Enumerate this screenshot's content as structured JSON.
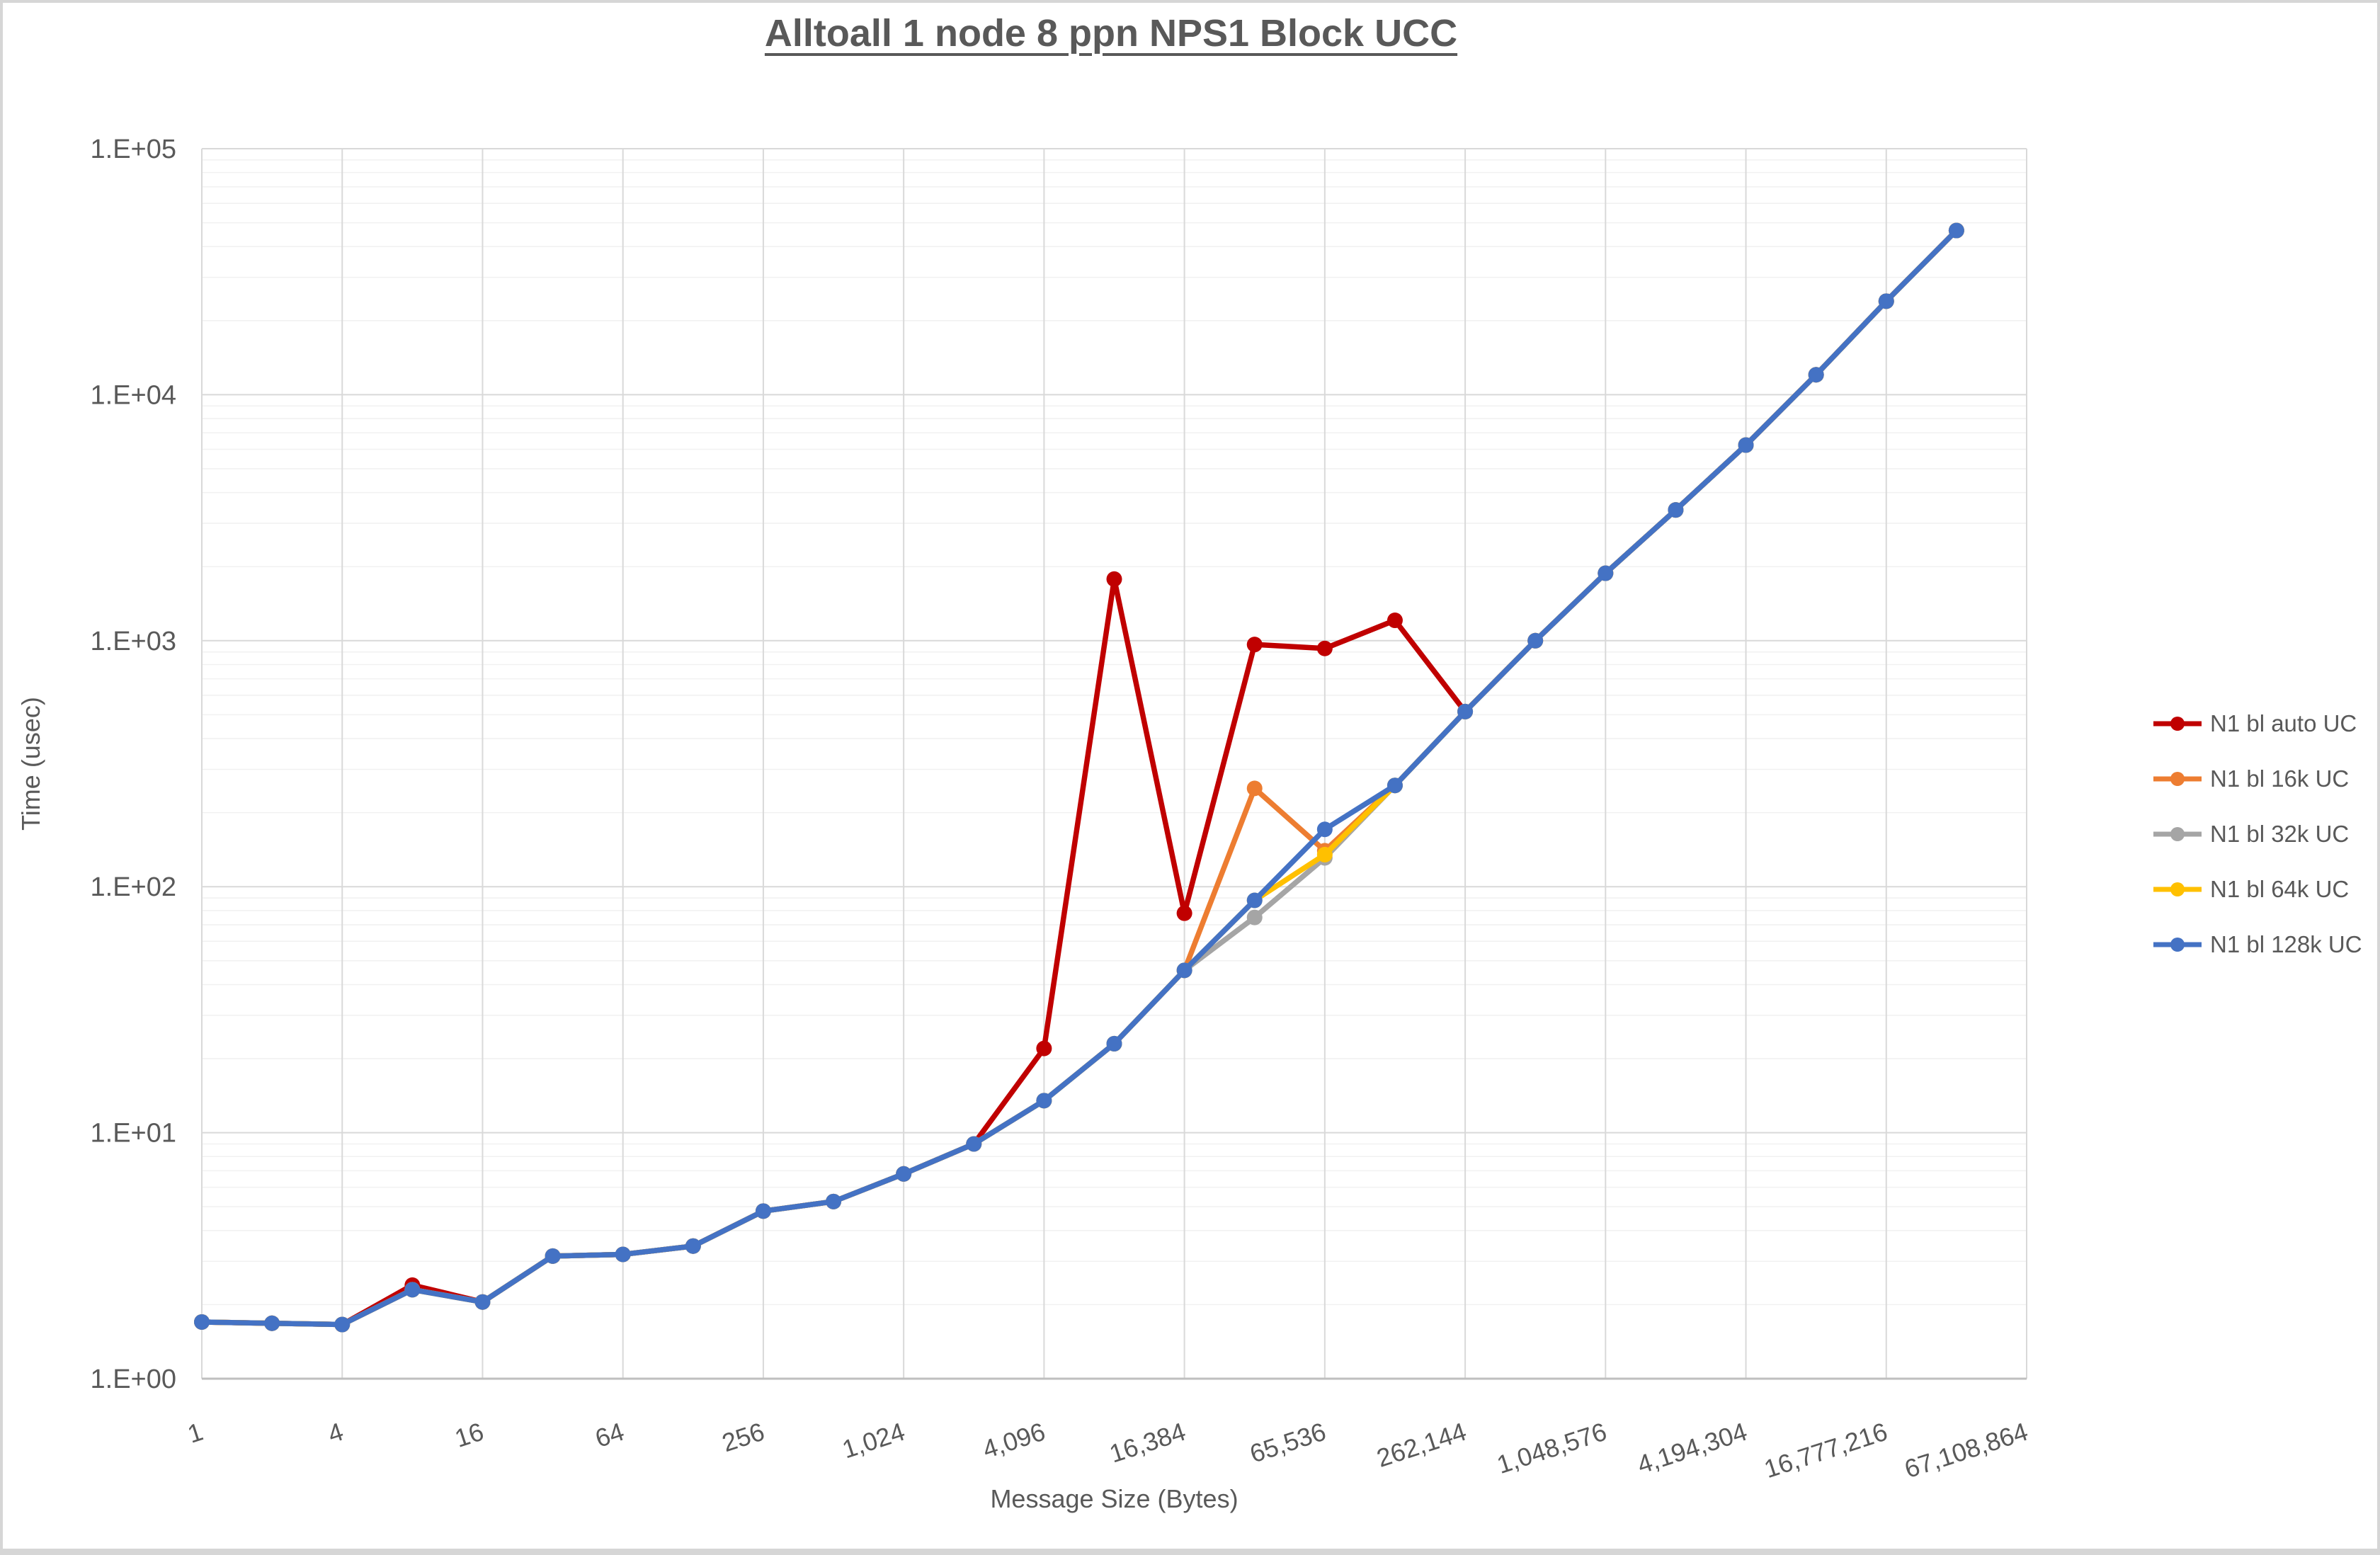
{
  "chart_data": {
    "type": "line",
    "title": "Alltoall 1 node 8 ppn NPS1 Block UCC",
    "xlabel": "Message Size (Bytes)",
    "ylabel": "Time (usec)",
    "x_scale": "log2",
    "y_scale": "log10",
    "xlim": [
      1,
      67108864
    ],
    "ylim": [
      1,
      100000
    ],
    "grid": true,
    "legend_position": "right",
    "y_tick_labels": [
      "1.E+00",
      "1.E+01",
      "1.E+02",
      "1.E+03",
      "1.E+04",
      "1.E+05"
    ],
    "x_tick_values": [
      1,
      4,
      16,
      64,
      256,
      1024,
      4096,
      16384,
      65536,
      262144,
      1048576,
      4194304,
      16777216,
      67108864
    ],
    "x_tick_labels": [
      "1",
      "4",
      "16",
      "64",
      "256",
      "1,024",
      "4,096",
      "16,384",
      "65,536",
      "262,144",
      "1,048,576",
      "4,194,304",
      "16,777,216",
      "67,108,864"
    ],
    "x": [
      1,
      2,
      4,
      8,
      16,
      32,
      64,
      128,
      256,
      512,
      1024,
      2048,
      4096,
      8192,
      16384,
      32768,
      65536,
      131072,
      262144,
      524288,
      1048576,
      2097152,
      4194304,
      8388608,
      16777216,
      33554432
    ],
    "series": [
      {
        "name": "N1 bl auto UC",
        "color": "#C00000",
        "values": [
          1.7,
          1.68,
          1.66,
          2.4,
          2.05,
          3.15,
          3.2,
          3.46,
          4.8,
          5.25,
          6.8,
          9.0,
          22,
          1780,
          78,
          965,
          930,
          1210,
          515,
          1000,
          1880,
          3400,
          6240,
          12050,
          24000,
          46500
        ]
      },
      {
        "name": "N1 bl 16k UC",
        "color": "#ED7D31",
        "values": [
          1.7,
          1.68,
          1.66,
          2.3,
          2.05,
          3.15,
          3.2,
          3.46,
          4.8,
          5.25,
          6.8,
          9.0,
          13.5,
          23,
          45.7,
          251,
          140,
          258,
          515,
          1000,
          1880,
          3400,
          6240,
          12050,
          24000,
          46500
        ]
      },
      {
        "name": "N1 bl 32k UC",
        "color": "#A5A5A5",
        "values": [
          1.7,
          1.68,
          1.66,
          2.3,
          2.05,
          3.15,
          3.2,
          3.46,
          4.8,
          5.25,
          6.8,
          9.0,
          13.5,
          23,
          45.7,
          75,
          131,
          258,
          515,
          1000,
          1880,
          3400,
          6240,
          12050,
          24000,
          46500
        ]
      },
      {
        "name": "N1 bl 64k UC",
        "color": "#FFC000",
        "values": [
          1.7,
          1.68,
          1.66,
          2.3,
          2.05,
          3.15,
          3.2,
          3.46,
          4.8,
          5.25,
          6.8,
          9.0,
          13.5,
          23,
          45.7,
          88,
          135,
          258,
          515,
          1000,
          1880,
          3400,
          6240,
          12050,
          24000,
          46500
        ]
      },
      {
        "name": "N1 bl 128k UC",
        "color": "#4472C4",
        "values": [
          1.7,
          1.68,
          1.66,
          2.3,
          2.05,
          3.15,
          3.2,
          3.46,
          4.8,
          5.25,
          6.8,
          9.0,
          13.5,
          23,
          45.7,
          88,
          171,
          258,
          515,
          1000,
          1880,
          3400,
          6240,
          12050,
          24000,
          46500
        ]
      }
    ],
    "colors": {
      "text": "#595959",
      "major_grid": "#D9D9D9",
      "minor_grid": "#F1F1F1",
      "axis_line": "#BFBFBF"
    }
  }
}
